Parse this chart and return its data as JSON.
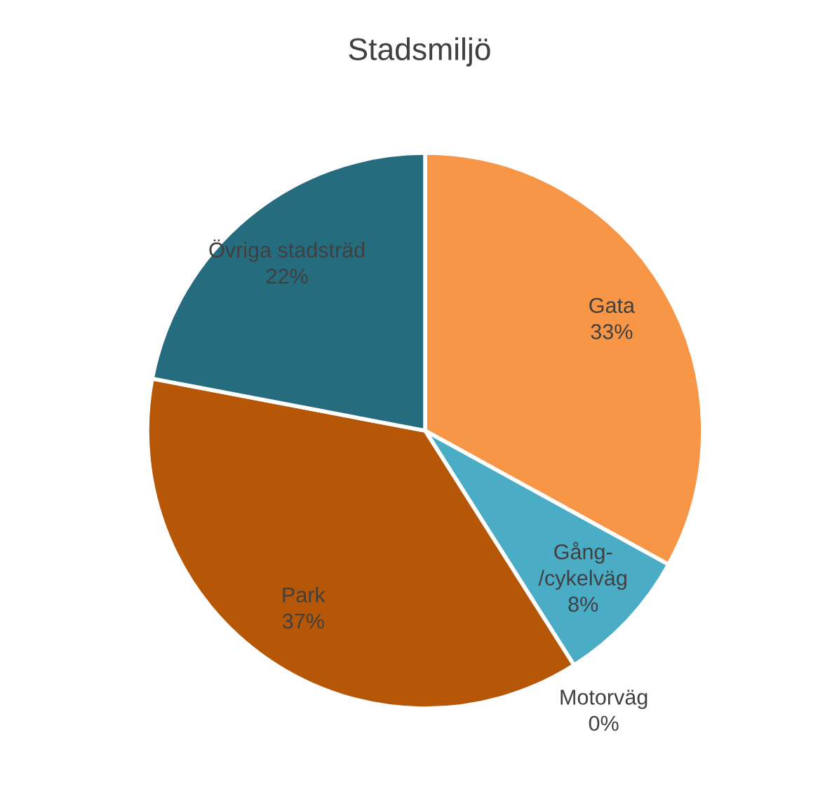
{
  "chart_data": {
    "type": "pie",
    "title": "Stadsmiljö",
    "categories": [
      "Gata",
      "Gång-/cykelväg",
      "Motorväg",
      "Park",
      "Övriga stadsträd"
    ],
    "values": [
      33,
      8,
      0,
      37,
      22
    ],
    "colors": [
      "#f79646",
      "#4bacc6",
      "#1f497d",
      "#b65708",
      "#256c7f"
    ],
    "value_labels": [
      "33%",
      "8%",
      "0%",
      "37%",
      "22%"
    ],
    "legend": false
  }
}
